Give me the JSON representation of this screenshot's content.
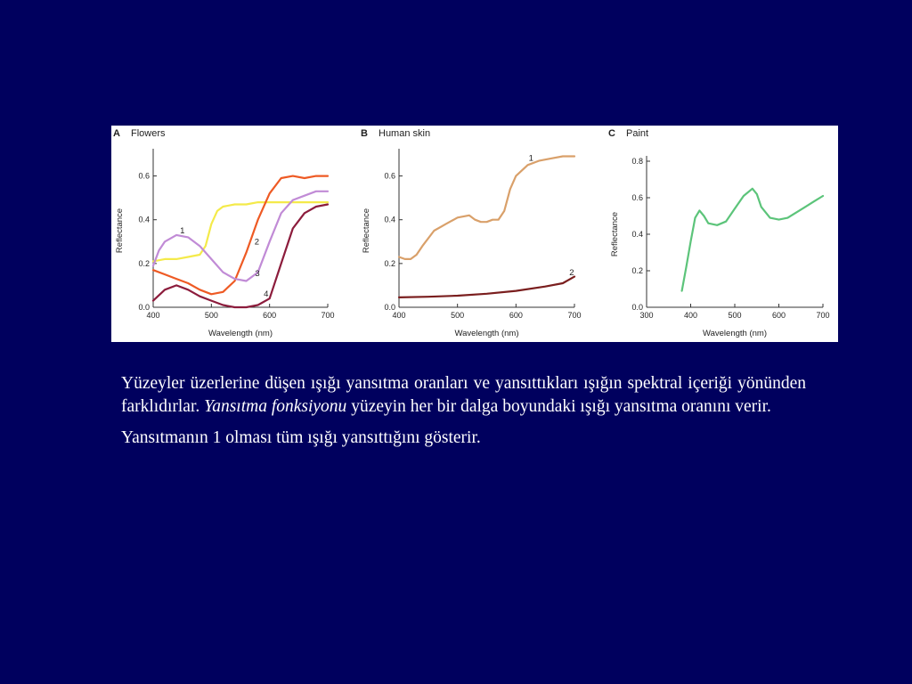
{
  "chart_data": [
    {
      "type": "line",
      "panel_letter": "A",
      "title": "Flowers",
      "xlabel": "Wavelength (nm)",
      "ylabel": "Reflectance",
      "xlim": [
        400,
        700
      ],
      "ylim": [
        0.0,
        0.7
      ],
      "xticks": [
        400,
        500,
        600,
        700
      ],
      "yticks": [
        0.0,
        0.2,
        0.4,
        0.6
      ],
      "series": [
        {
          "label": "1",
          "color": "#f4ea4a",
          "x": [
            400,
            420,
            440,
            460,
            480,
            490,
            500,
            510,
            520,
            540,
            560,
            580,
            600,
            620,
            640,
            660,
            680,
            700
          ],
          "y": [
            0.21,
            0.22,
            0.22,
            0.23,
            0.24,
            0.28,
            0.38,
            0.44,
            0.46,
            0.47,
            0.47,
            0.48,
            0.48,
            0.48,
            0.48,
            0.48,
            0.48,
            0.48
          ]
        },
        {
          "label": "2",
          "color": "#ee5a24",
          "x": [
            400,
            420,
            440,
            460,
            480,
            500,
            520,
            540,
            560,
            580,
            600,
            620,
            640,
            660,
            680,
            700
          ],
          "y": [
            0.17,
            0.15,
            0.13,
            0.11,
            0.08,
            0.06,
            0.07,
            0.12,
            0.25,
            0.4,
            0.52,
            0.59,
            0.6,
            0.59,
            0.6,
            0.6
          ]
        },
        {
          "label": "3",
          "color": "#c18bd6",
          "x": [
            400,
            410,
            420,
            440,
            460,
            480,
            500,
            520,
            540,
            560,
            580,
            600,
            620,
            640,
            660,
            680,
            700
          ],
          "y": [
            0.19,
            0.26,
            0.3,
            0.33,
            0.32,
            0.28,
            0.22,
            0.16,
            0.13,
            0.12,
            0.16,
            0.3,
            0.43,
            0.49,
            0.51,
            0.53,
            0.53
          ]
        },
        {
          "label": "4",
          "color": "#8c1c3c",
          "x": [
            400,
            420,
            440,
            460,
            480,
            500,
            520,
            540,
            560,
            580,
            600,
            620,
            640,
            660,
            680,
            700
          ],
          "y": [
            0.03,
            0.08,
            0.1,
            0.08,
            0.05,
            0.03,
            0.01,
            0.0,
            0.0,
            0.01,
            0.04,
            0.2,
            0.36,
            0.43,
            0.46,
            0.47
          ]
        }
      ]
    },
    {
      "type": "line",
      "panel_letter": "B",
      "title": "Human skin",
      "xlabel": "Wavelength (nm)",
      "ylabel": "Reflectance",
      "xlim": [
        400,
        700
      ],
      "ylim": [
        0.0,
        0.7
      ],
      "xticks": [
        400,
        500,
        600,
        700
      ],
      "yticks": [
        0.0,
        0.2,
        0.4,
        0.6
      ],
      "series": [
        {
          "label": "1",
          "color": "#d9a06a",
          "x": [
            400,
            410,
            420,
            430,
            440,
            460,
            480,
            500,
            520,
            530,
            540,
            550,
            560,
            570,
            580,
            590,
            600,
            620,
            640,
            660,
            680,
            700
          ],
          "y": [
            0.23,
            0.22,
            0.22,
            0.24,
            0.28,
            0.35,
            0.38,
            0.41,
            0.42,
            0.4,
            0.39,
            0.39,
            0.4,
            0.4,
            0.44,
            0.54,
            0.6,
            0.65,
            0.67,
            0.68,
            0.69,
            0.69
          ]
        },
        {
          "label": "2",
          "color": "#7a1e1e",
          "x": [
            400,
            450,
            500,
            550,
            600,
            650,
            680,
            700
          ],
          "y": [
            0.045,
            0.048,
            0.053,
            0.062,
            0.075,
            0.095,
            0.11,
            0.14
          ]
        }
      ]
    },
    {
      "type": "line",
      "panel_letter": "C",
      "title": "Paint",
      "xlabel": "Wavelength (nm)",
      "ylabel": "Reflectance",
      "xlim": [
        300,
        700
      ],
      "ylim": [
        0.0,
        0.8
      ],
      "xticks": [
        300,
        400,
        500,
        600,
        700
      ],
      "yticks": [
        0.0,
        0.2,
        0.4,
        0.6,
        0.8
      ],
      "series": [
        {
          "label": "",
          "color": "#5cc47a",
          "x": [
            380,
            390,
            400,
            410,
            420,
            430,
            440,
            460,
            480,
            500,
            520,
            540,
            550,
            560,
            580,
            600,
            620,
            640,
            660,
            680,
            700
          ],
          "y": [
            0.09,
            0.22,
            0.36,
            0.49,
            0.53,
            0.5,
            0.46,
            0.45,
            0.47,
            0.54,
            0.61,
            0.65,
            0.62,
            0.55,
            0.49,
            0.48,
            0.49,
            0.52,
            0.55,
            0.58,
            0.61
          ]
        }
      ]
    }
  ],
  "caption": {
    "p1_part1": "Yüzeyler üzerlerine düşen ışığı yansıtma oranları ve yansıttıkları ışığın spektral içeriği yönünden farklıdırlar.",
    "p1_italic": "Yansıtma fonksiyonu",
    "p1_part2": "yüzeyin her bir dalga boyundaki ışığı yansıtma oranını verir.",
    "p2": "Yansıtmanın 1 olması tüm ışığı yansıttığını gösterir."
  }
}
